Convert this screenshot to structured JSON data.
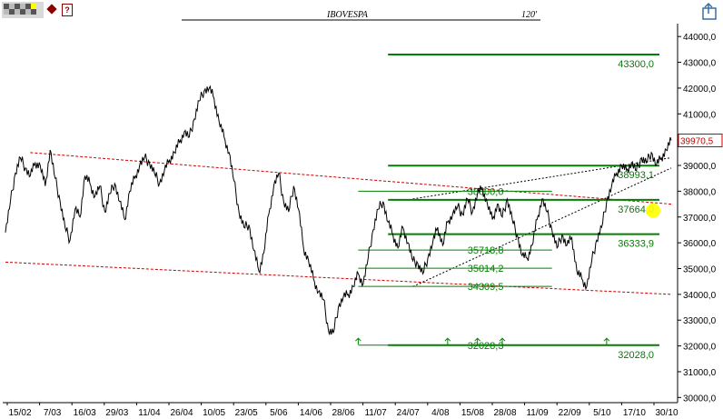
{
  "header": {
    "symbol": "IBOVESPA",
    "period": "120'",
    "help_label": "?"
  },
  "colors": {
    "price": "#000000",
    "support_resistance": "#008000",
    "trend_channel": "#cc0000",
    "highlight_marker": "#ffff00",
    "last_price_box": "#cc0000"
  },
  "icons": {
    "logo": "logo-icon",
    "diamond": "diamond-icon",
    "help": "help-icon",
    "corner": "zoom-icon"
  },
  "chart_data": {
    "type": "line",
    "title": "IBOVESPA",
    "subtitle": "120'",
    "ylim": [
      29800,
      44500
    ],
    "y_ticks": [
      30000,
      31000,
      32000,
      33000,
      34000,
      35000,
      36000,
      37000,
      38000,
      39000,
      40000,
      41000,
      42000,
      43000,
      44000
    ],
    "y_tick_labels": [
      "30000,0",
      "31000,0",
      "32000,0",
      "33000,0",
      "34000,0",
      "35000,0",
      "36000,0",
      "37000,0",
      "38000,0",
      "39000,0",
      "40000,0",
      "41000,0",
      "42000,0",
      "43000,0",
      "44000,0"
    ],
    "x_tick_labels": [
      "15/02",
      "7/03",
      "16/03",
      "29/03",
      "11/04",
      "26/04",
      "10/05",
      "23/05",
      "5/06",
      "14/06",
      "28/06",
      "11/07",
      "24/07",
      "4/08",
      "15/08",
      "28/08",
      "11/09",
      "22/09",
      "5/10",
      "17/10",
      "30/10"
    ],
    "last_price_label": "39970,5",
    "price_series": [
      [
        0,
        36400
      ],
      [
        1,
        37600
      ],
      [
        2,
        38700
      ],
      [
        3,
        39300
      ],
      [
        4,
        38900
      ],
      [
        5,
        38600
      ],
      [
        6,
        39100
      ],
      [
        7,
        39000
      ],
      [
        8,
        38200
      ],
      [
        9,
        39600
      ],
      [
        10,
        38500
      ],
      [
        11,
        37600
      ],
      [
        12,
        36600
      ],
      [
        13,
        36100
      ],
      [
        14,
        37300
      ],
      [
        15,
        37000
      ],
      [
        16,
        38600
      ],
      [
        17,
        38300
      ],
      [
        18,
        37800
      ],
      [
        19,
        38200
      ],
      [
        20,
        37200
      ],
      [
        21,
        37900
      ],
      [
        22,
        38300
      ],
      [
        23,
        37600
      ],
      [
        24,
        36900
      ],
      [
        25,
        38000
      ],
      [
        26,
        38500
      ],
      [
        27,
        39000
      ],
      [
        28,
        39300
      ],
      [
        29,
        39100
      ],
      [
        30,
        38700
      ],
      [
        31,
        38300
      ],
      [
        32,
        38800
      ],
      [
        33,
        39200
      ],
      [
        34,
        39500
      ],
      [
        35,
        39900
      ],
      [
        36,
        40300
      ],
      [
        37,
        40100
      ],
      [
        38,
        40800
      ],
      [
        39,
        41500
      ],
      [
        40,
        41900
      ],
      [
        41,
        42000
      ],
      [
        42,
        41600
      ],
      [
        43,
        40700
      ],
      [
        44,
        40100
      ],
      [
        45,
        39500
      ],
      [
        46,
        38400
      ],
      [
        47,
        37200
      ],
      [
        48,
        36600
      ],
      [
        49,
        36700
      ],
      [
        50,
        35700
      ],
      [
        51,
        34900
      ],
      [
        52,
        35600
      ],
      [
        53,
        37100
      ],
      [
        54,
        38200
      ],
      [
        55,
        38700
      ],
      [
        56,
        37600
      ],
      [
        57,
        37200
      ],
      [
        58,
        38200
      ],
      [
        59,
        37300
      ],
      [
        60,
        35800
      ],
      [
        61,
        35300
      ],
      [
        62,
        34600
      ],
      [
        63,
        34100
      ],
      [
        64,
        33800
      ],
      [
        65,
        32600
      ],
      [
        66,
        32500
      ],
      [
        67,
        33500
      ],
      [
        68,
        33900
      ],
      [
        69,
        34000
      ],
      [
        70,
        34300
      ],
      [
        71,
        34800
      ],
      [
        72,
        34400
      ],
      [
        73,
        35400
      ],
      [
        74,
        36500
      ],
      [
        75,
        37300
      ],
      [
        76,
        37600
      ],
      [
        77,
        36800
      ],
      [
        78,
        36300
      ],
      [
        79,
        35800
      ],
      [
        80,
        36600
      ],
      [
        81,
        36000
      ],
      [
        82,
        35300
      ],
      [
        83,
        35200
      ],
      [
        84,
        34800
      ],
      [
        85,
        35400
      ],
      [
        86,
        36000
      ],
      [
        87,
        36600
      ],
      [
        88,
        35900
      ],
      [
        89,
        36800
      ],
      [
        90,
        37100
      ],
      [
        91,
        37400
      ],
      [
        92,
        37100
      ],
      [
        93,
        37700
      ],
      [
        94,
        37200
      ],
      [
        95,
        37900
      ],
      [
        96,
        38100
      ],
      [
        97,
        37500
      ],
      [
        98,
        36900
      ],
      [
        99,
        37500
      ],
      [
        100,
        37000
      ],
      [
        101,
        37700
      ],
      [
        102,
        36900
      ],
      [
        103,
        36300
      ],
      [
        104,
        35500
      ],
      [
        105,
        35400
      ],
      [
        106,
        35900
      ],
      [
        107,
        36900
      ],
      [
        108,
        37700
      ],
      [
        109,
        37200
      ],
      [
        110,
        36500
      ],
      [
        111,
        35800
      ],
      [
        112,
        36300
      ],
      [
        113,
        35900
      ],
      [
        114,
        36200
      ],
      [
        115,
        34900
      ],
      [
        116,
        34600
      ],
      [
        117,
        34300
      ],
      [
        118,
        35300
      ],
      [
        119,
        36100
      ],
      [
        120,
        36600
      ],
      [
        121,
        37600
      ],
      [
        122,
        38200
      ],
      [
        123,
        38700
      ],
      [
        124,
        39000
      ],
      [
        125,
        38800
      ],
      [
        126,
        39100
      ],
      [
        127,
        38800
      ],
      [
        128,
        39300
      ],
      [
        129,
        39100
      ],
      [
        130,
        39500
      ],
      [
        131,
        39000
      ],
      [
        132,
        39300
      ],
      [
        133,
        39600
      ],
      [
        134,
        39970
      ]
    ],
    "levels": [
      {
        "value": 43300.0,
        "label": "43300,0",
        "label_side": "right",
        "from": 77
      },
      {
        "value": 38993.1,
        "label": "38993,1",
        "label_side": "right",
        "from": 77
      },
      {
        "value": 37664.0,
        "label": "37664,0",
        "label_side": "right",
        "from": 77
      },
      {
        "value": 36333.9,
        "label": "36333,9",
        "label_side": "right",
        "from": 77
      },
      {
        "value": 32028.0,
        "label": "32028,0",
        "label_side": "right",
        "from": 77
      }
    ],
    "thin_levels": [
      {
        "value": 38000.0,
        "label": "38000,0",
        "from": 71,
        "to": 110
      },
      {
        "value": 35718.8,
        "label": "35718,8",
        "from": 71,
        "to": 110
      },
      {
        "value": 35014.2,
        "label": "35014,2",
        "from": 71,
        "to": 110
      },
      {
        "value": 34309.5,
        "label": "34309,5",
        "from": 71,
        "to": 110
      },
      {
        "value": 32028.3,
        "label": "32028,3",
        "from": 71,
        "to": 110
      }
    ],
    "red_channel": [
      {
        "x1": 5,
        "y1": 39500,
        "x2": 134,
        "y2": 37500
      },
      {
        "x1": 0,
        "y1": 35250,
        "x2": 134,
        "y2": 34000
      }
    ],
    "dotted_trend": [
      {
        "x1": 82,
        "y1": 34300,
        "x2": 134,
        "y2": 38900
      },
      {
        "x1": 82,
        "y1": 37700,
        "x2": 134,
        "y2": 39300
      }
    ],
    "arrow_marks_x": [
      71,
      89,
      95,
      100,
      121
    ],
    "arrow_marks_value": 32050,
    "highlight_point": {
      "x": 134,
      "value": 37250
    }
  }
}
